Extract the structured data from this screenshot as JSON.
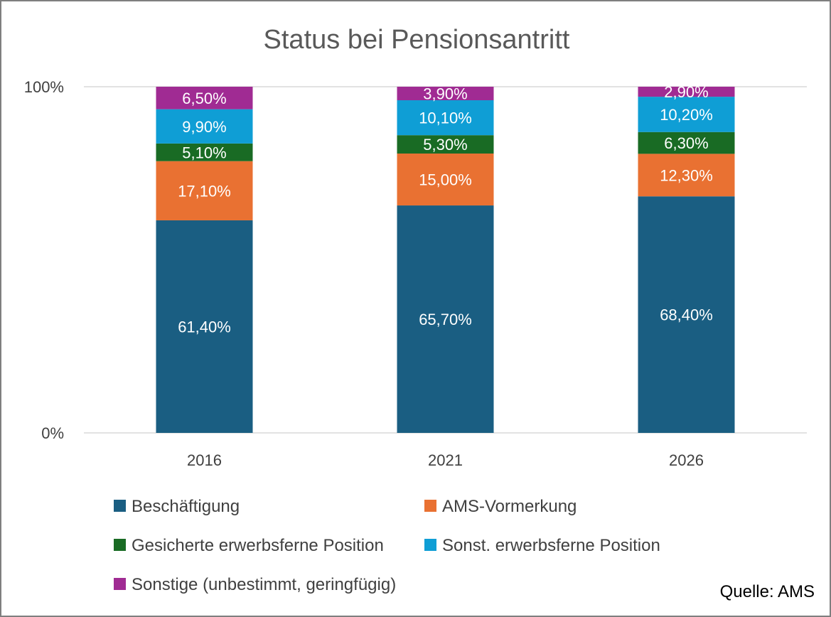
{
  "chart_data": {
    "type": "bar",
    "stacked": true,
    "percent_stacked": true,
    "title": "Status bei Pensionsantritt",
    "categories": [
      "2016",
      "2021",
      "2026"
    ],
    "y_ticks": [
      "0%",
      "100%"
    ],
    "ylim": [
      0,
      100
    ],
    "grid": true,
    "legend_position": "bottom",
    "series": [
      {
        "name": "Beschäftigung",
        "color": "#1a5e82",
        "values": [
          61.4,
          65.7,
          68.4
        ],
        "labels": [
          "61,40%",
          "65,70%",
          "68,40%"
        ]
      },
      {
        "name": "AMS-Vormerkung",
        "color": "#e97132",
        "values": [
          17.1,
          15.0,
          12.3
        ],
        "labels": [
          "17,10%",
          "15,00%",
          "12,30%"
        ]
      },
      {
        "name": "Gesicherte erwerbsferne Position",
        "color": "#196b24",
        "values": [
          5.1,
          5.3,
          6.3
        ],
        "labels": [
          "5,10%",
          "5,30%",
          "6,30%"
        ]
      },
      {
        "name": "Sonst. erwerbsferne Position",
        "color": "#0f9ed5",
        "values": [
          9.9,
          10.1,
          10.2
        ],
        "labels": [
          "9,90%",
          "10,10%",
          "10,20%"
        ]
      },
      {
        "name": "Sonstige (unbestimmt, geringfügig)",
        "color": "#a02b93",
        "values": [
          6.5,
          3.9,
          2.9
        ],
        "labels": [
          "6,50%",
          "3,90%",
          "2,90%"
        ]
      }
    ],
    "source": "Quelle: AMS"
  }
}
